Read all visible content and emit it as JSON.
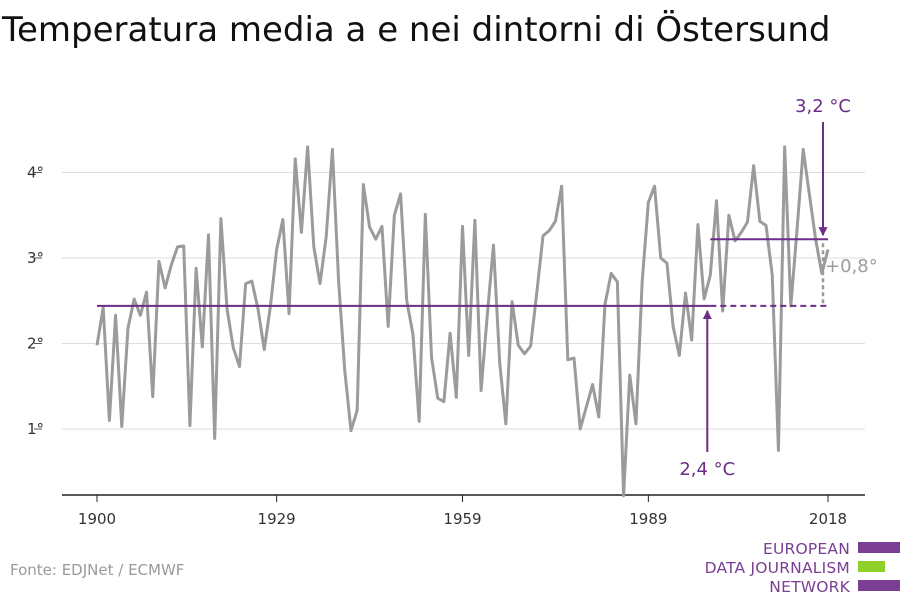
{
  "title": "Temperatura media a e nei dintorni di Östersund",
  "source": "Fonte: EDJNet / ECMWF",
  "logo": {
    "lines": [
      "EUROPEAN",
      "DATA JOURNALISM",
      "NETWORK"
    ],
    "colors": {
      "purple": "#7a3e93",
      "green": "#8fcf2a"
    }
  },
  "colors": {
    "series": "#9b9b9b",
    "baseline": "#6b2d86",
    "annotation": "#6b2d86",
    "delta": "#9b9b9b",
    "grid": "#dddddd",
    "axis": "#222222"
  },
  "chart_data": {
    "type": "line",
    "title": "Temperatura media a e nei dintorni di Östersund",
    "xlabel": "",
    "ylabel": "",
    "xlim": [
      1900,
      2018
    ],
    "ylim": [
      0.2,
      4.8
    ],
    "x_ticks": [
      1900,
      1929,
      1959,
      1989,
      2018
    ],
    "x_tick_labels": [
      "1900",
      "1929",
      "1959",
      "1989",
      "2018"
    ],
    "y_ticks": [
      1,
      2,
      3,
      4
    ],
    "y_tick_labels": [
      "1°",
      "2°",
      "3°",
      "4°"
    ],
    "grid": true,
    "series": [
      {
        "name": "",
        "x": [
          1900,
          1901,
          1902,
          1903,
          1904,
          1905,
          1906,
          1907,
          1908,
          1909,
          1910,
          1911,
          1912,
          1913,
          1914,
          1915,
          1916,
          1917,
          1918,
          1919,
          1920,
          1921,
          1922,
          1923,
          1924,
          1925,
          1926,
          1927,
          1928,
          1929,
          1930,
          1931,
          1932,
          1933,
          1934,
          1935,
          1936,
          1937,
          1938,
          1939,
          1940,
          1941,
          1942,
          1943,
          1944,
          1945,
          1946,
          1947,
          1948,
          1949,
          1950,
          1951,
          1952,
          1953,
          1954,
          1955,
          1956,
          1957,
          1958,
          1959,
          1960,
          1961,
          1962,
          1963,
          1964,
          1965,
          1966,
          1967,
          1968,
          1969,
          1970,
          1971,
          1972,
          1973,
          1974,
          1975,
          1976,
          1977,
          1978,
          1979,
          1980,
          1981,
          1982,
          1983,
          1984,
          1985,
          1986,
          1987,
          1988,
          1989,
          1990,
          1991,
          1992,
          1993,
          1994,
          1995,
          1996,
          1997,
          1998,
          1999,
          2000,
          2001,
          2002,
          2003,
          2004,
          2005,
          2006,
          2007,
          2008,
          2009,
          2010,
          2011,
          2012,
          2013,
          2014,
          2015,
          2016,
          2017,
          2018
        ],
        "values": [
          1.98,
          2.42,
          1.1,
          2.33,
          1.03,
          2.18,
          2.52,
          2.33,
          2.6,
          1.38,
          2.96,
          2.65,
          2.92,
          3.13,
          3.14,
          1.04,
          2.88,
          1.96,
          3.27,
          0.89,
          3.46,
          2.4,
          1.95,
          1.73,
          2.7,
          2.73,
          2.4,
          1.93,
          2.44,
          3.1,
          3.45,
          2.35,
          4.16,
          3.3,
          4.3,
          3.13,
          2.7,
          3.25,
          4.27,
          2.73,
          1.68,
          0.98,
          1.22,
          3.86,
          3.36,
          3.22,
          3.37,
          2.2,
          3.5,
          3.75,
          2.5,
          2.11,
          1.09,
          3.51,
          1.84,
          1.36,
          1.32,
          2.12,
          1.37,
          3.37,
          1.86,
          3.44,
          1.45,
          2.33,
          3.15,
          1.78,
          1.06,
          2.49,
          1.98,
          1.88,
          1.97,
          2.6,
          3.26,
          3.32,
          3.43,
          3.84,
          1.81,
          1.83,
          1.0,
          1.26,
          1.52,
          1.14,
          2.46,
          2.82,
          2.72,
          0.22,
          1.63,
          1.06,
          2.72,
          3.65,
          3.84,
          3.0,
          2.94,
          2.2,
          1.86,
          2.59,
          2.04,
          3.39,
          2.52,
          2.8,
          3.67,
          2.38,
          3.5,
          3.2,
          3.3,
          3.42,
          4.08,
          3.43,
          3.38,
          2.8,
          0.75,
          4.3,
          2.44,
          3.33,
          4.27,
          3.74,
          3.22,
          2.82,
          3.1
        ]
      }
    ],
    "baseline": {
      "value": 2.44,
      "from": 1900,
      "to": 2018,
      "label": "2,4 °C"
    },
    "recent": {
      "value": 3.22,
      "from": 1999,
      "to": 2018,
      "label": "3,2 °C"
    },
    "delta_label": "+0,8°"
  }
}
